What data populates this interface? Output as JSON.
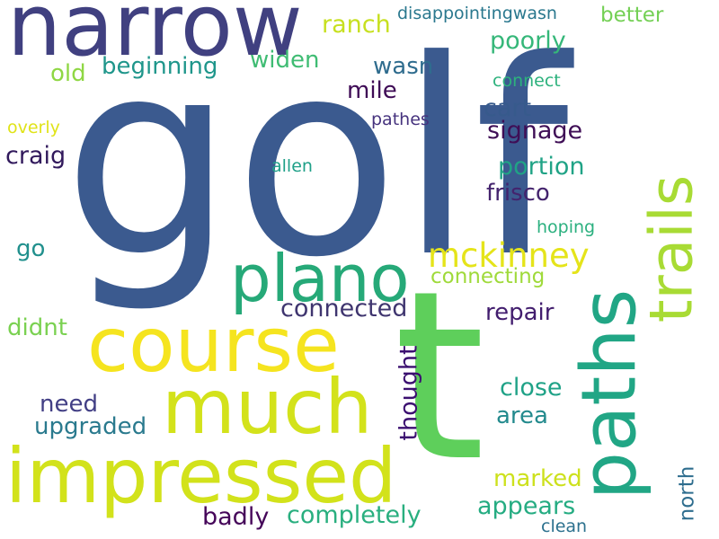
{
  "words": [
    {
      "text": "golf",
      "color": "#3b5a8f",
      "rotate": false
    },
    {
      "text": "t",
      "color": "#5ecf5b",
      "rotate": false
    },
    {
      "text": "narrow",
      "color": "#404080",
      "rotate": false
    },
    {
      "text": "course",
      "color": "#f5e41f",
      "rotate": false
    },
    {
      "text": "much",
      "color": "#d3e21b",
      "rotate": false
    },
    {
      "text": "impressed",
      "color": "#d2e21b",
      "rotate": false
    },
    {
      "text": "plano",
      "color": "#26a978",
      "rotate": false
    },
    {
      "text": "paths",
      "color": "#21a685",
      "rotate": true
    },
    {
      "text": "trails",
      "color": "#a8db34",
      "rotate": true
    },
    {
      "text": "mckinney",
      "color": "#e5e41a",
      "rotate": false
    },
    {
      "text": "ranch",
      "color": "#c7e020",
      "rotate": false
    },
    {
      "text": "disappointingwasn",
      "color": "#2a788e",
      "rotate": false
    },
    {
      "text": "better",
      "color": "#74d055",
      "rotate": false
    },
    {
      "text": "poorly",
      "color": "#35b779",
      "rotate": false
    },
    {
      "text": "beginning",
      "color": "#1f968b",
      "rotate": false
    },
    {
      "text": "widen",
      "color": "#3fbc73",
      "rotate": false
    },
    {
      "text": "wasn",
      "color": "#2f6c8e",
      "rotate": false
    },
    {
      "text": "old",
      "color": "#8fd744",
      "rotate": false
    },
    {
      "text": "mile",
      "color": "#3e0a55",
      "rotate": false
    },
    {
      "text": "connect",
      "color": "#2db27d",
      "rotate": false
    },
    {
      "text": "cart",
      "color": "#375a8c",
      "rotate": false
    },
    {
      "text": "overly",
      "color": "#e0e318",
      "rotate": false
    },
    {
      "text": "pathes",
      "color": "#46337e",
      "rotate": false
    },
    {
      "text": "signage",
      "color": "#3f0e56",
      "rotate": false
    },
    {
      "text": "craig",
      "color": "#31195c",
      "rotate": false
    },
    {
      "text": "allen",
      "color": "#1fa088",
      "rotate": false
    },
    {
      "text": "portion",
      "color": "#20a386",
      "rotate": false
    },
    {
      "text": "frisco",
      "color": "#44236d",
      "rotate": false
    },
    {
      "text": "hoping",
      "color": "#2bb07f",
      "rotate": false
    },
    {
      "text": "go",
      "color": "#21908d",
      "rotate": false
    },
    {
      "text": "connecting",
      "color": "#9fda3a",
      "rotate": false
    },
    {
      "text": "connected",
      "color": "#3f356f",
      "rotate": false
    },
    {
      "text": "didnt",
      "color": "#7ad151",
      "rotate": false
    },
    {
      "text": "repair",
      "color": "#421d6e",
      "rotate": false
    },
    {
      "text": "thought",
      "color": "#3b0f70",
      "rotate": true
    },
    {
      "text": "close",
      "color": "#1fa287",
      "rotate": false
    },
    {
      "text": "need",
      "color": "#423f85",
      "rotate": false
    },
    {
      "text": "area",
      "color": "#238a8d",
      "rotate": false
    },
    {
      "text": "upgraded",
      "color": "#2a7a8e",
      "rotate": false
    },
    {
      "text": "marked",
      "color": "#cde11d",
      "rotate": false
    },
    {
      "text": "north",
      "color": "#2e6d8e",
      "rotate": true
    },
    {
      "text": "appears",
      "color": "#25ac82",
      "rotate": false
    },
    {
      "text": "badly",
      "color": "#450559",
      "rotate": false
    },
    {
      "text": "completely",
      "color": "#29af7f",
      "rotate": false
    },
    {
      "text": "clean",
      "color": "#2c718e",
      "rotate": false
    }
  ]
}
